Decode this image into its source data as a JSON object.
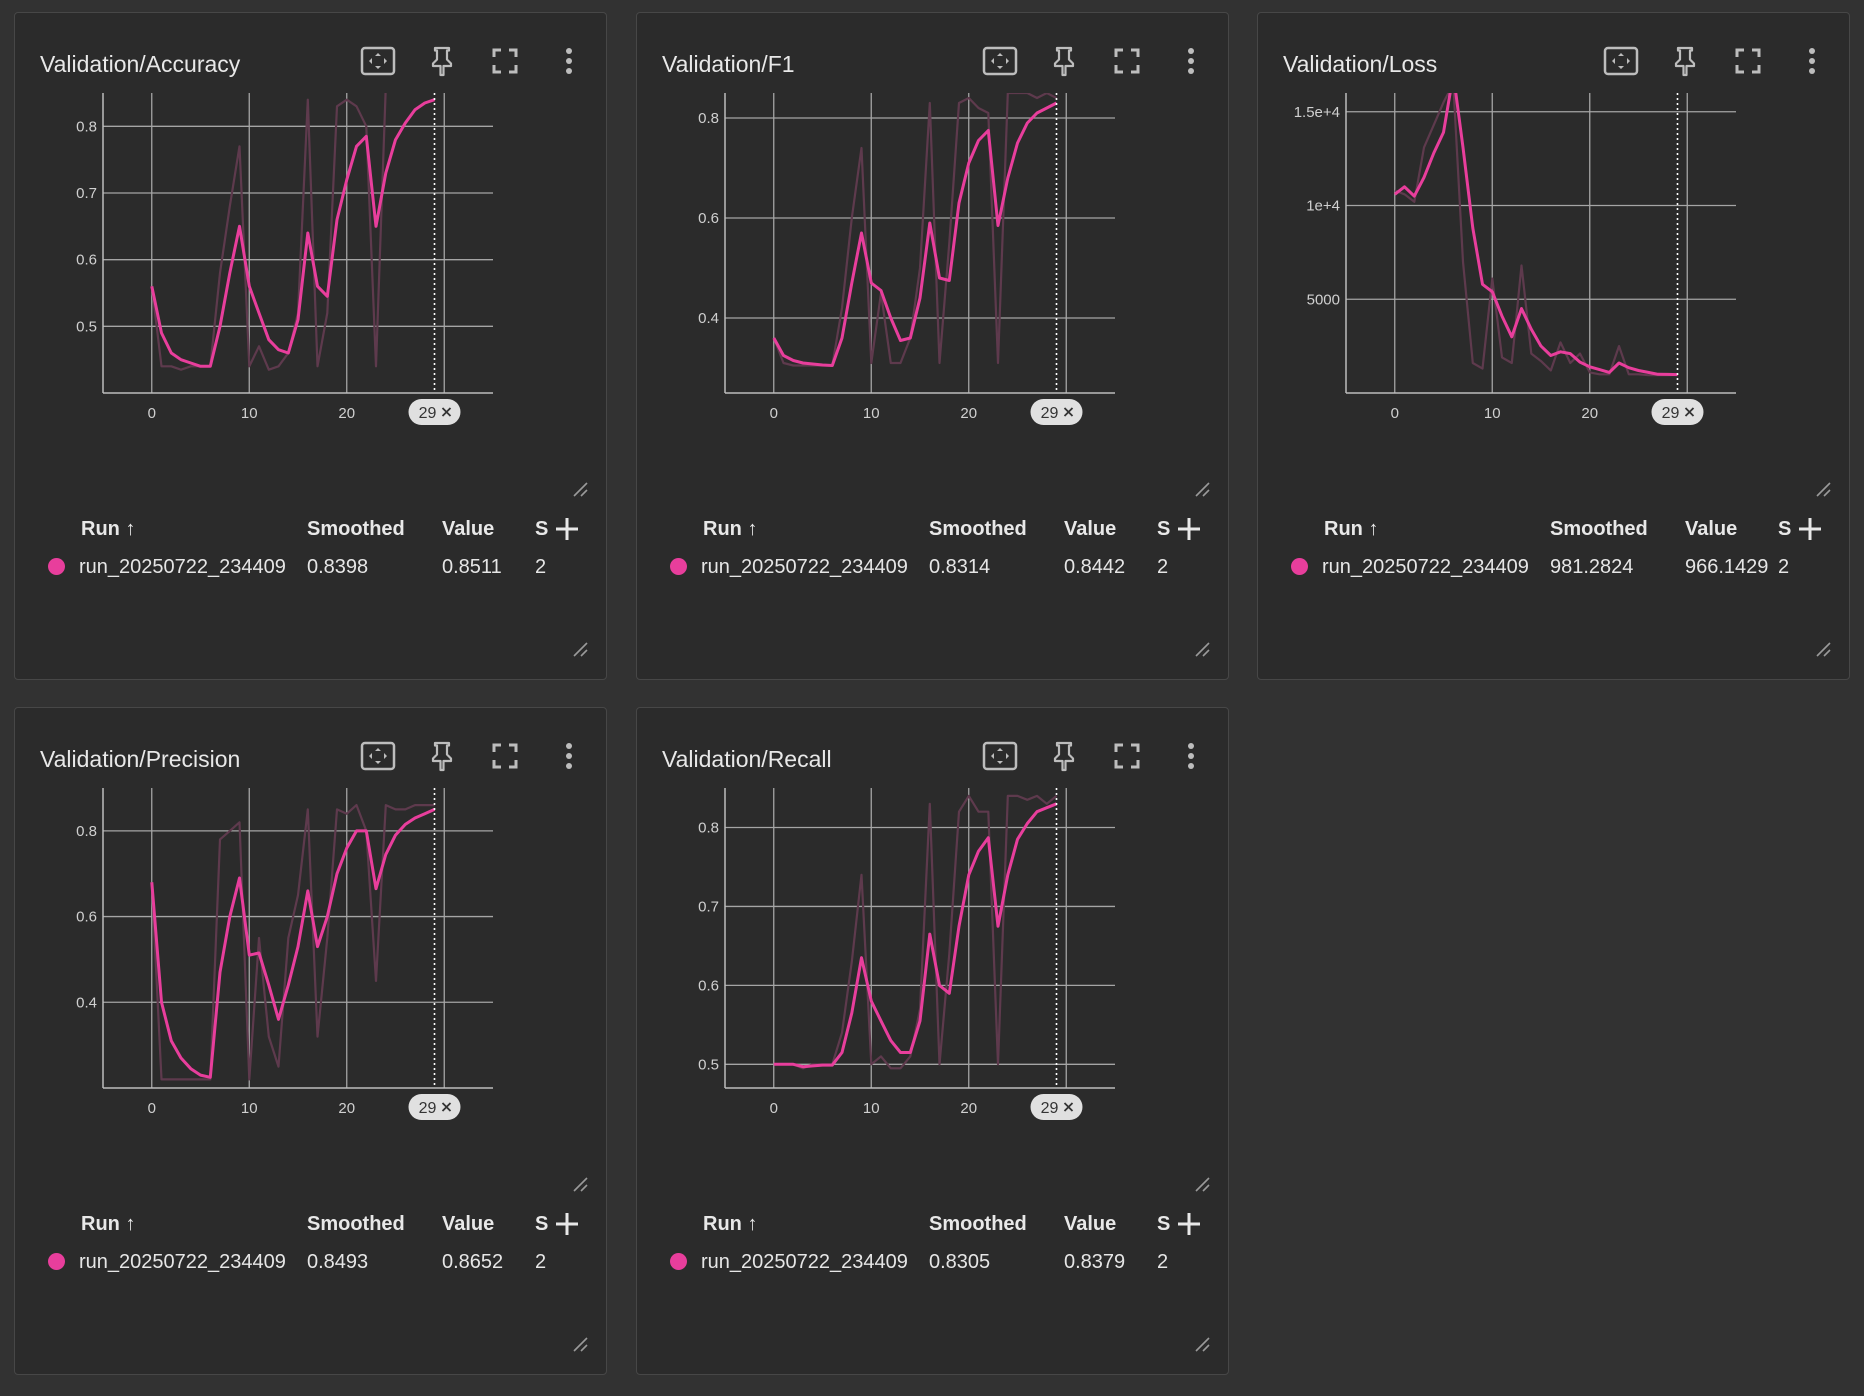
{
  "accent": "#e83e9c",
  "raw_color": "#5e3a4d",
  "table_headers": {
    "run": "Run",
    "smoothed": "Smoothed",
    "value": "Value",
    "step": "S"
  },
  "run_name": "run_20250722_234409",
  "step_marker": {
    "value": 29,
    "label": "29"
  },
  "toolbar_icons": [
    "fit-domain-icon",
    "pin-icon",
    "fullscreen-icon",
    "more-vert-icon"
  ],
  "cards": [
    {
      "title": "Validation/Accuracy",
      "smoothed": "0.8398",
      "value": "0.8511",
      "step": "2",
      "chart_data": {
        "type": "line",
        "x_ticks": [
          "0",
          "10",
          "20"
        ],
        "x_tick_values": [
          0,
          10,
          20
        ],
        "y_ticks": [
          "0.5",
          "0.6",
          "0.7",
          "0.8"
        ],
        "y_tick_values": [
          0.5,
          0.6,
          0.7,
          0.8
        ],
        "xlim": [
          -5,
          35
        ],
        "ylim": [
          0.4,
          0.85
        ],
        "series": [
          {
            "role": "raw",
            "values": [
              0.56,
              0.44,
              0.44,
              0.435,
              0.44,
              0.44,
              0.44,
              0.58,
              0.68,
              0.77,
              0.44,
              0.47,
              0.435,
              0.44,
              0.46,
              0.52,
              0.84,
              0.44,
              0.52,
              0.83,
              0.84,
              0.83,
              0.8,
              0.44,
              0.86,
              0.86,
              0.86,
              0.86,
              0.86,
              0.86
            ]
          },
          {
            "role": "smoothed",
            "values": [
              0.56,
              0.49,
              0.46,
              0.45,
              0.445,
              0.44,
              0.44,
              0.5,
              0.58,
              0.65,
              0.56,
              0.52,
              0.48,
              0.465,
              0.46,
              0.51,
              0.64,
              0.56,
              0.545,
              0.66,
              0.72,
              0.77,
              0.785,
              0.65,
              0.73,
              0.78,
              0.805,
              0.825,
              0.835,
              0.84
            ]
          }
        ]
      }
    },
    {
      "title": "Validation/F1",
      "smoothed": "0.8314",
      "value": "0.8442",
      "step": "2",
      "chart_data": {
        "type": "line",
        "x_ticks": [
          "0",
          "10",
          "20"
        ],
        "x_tick_values": [
          0,
          10,
          20
        ],
        "y_ticks": [
          "0.4",
          "0.6",
          "0.8"
        ],
        "y_tick_values": [
          0.4,
          0.6,
          0.8
        ],
        "xlim": [
          -5,
          35
        ],
        "ylim": [
          0.25,
          0.85
        ],
        "series": [
          {
            "role": "raw",
            "values": [
              0.36,
              0.31,
              0.305,
              0.305,
              0.305,
              0.305,
              0.305,
              0.42,
              0.6,
              0.74,
              0.31,
              0.45,
              0.31,
              0.31,
              0.36,
              0.5,
              0.83,
              0.31,
              0.55,
              0.83,
              0.84,
              0.82,
              0.81,
              0.31,
              0.85,
              0.85,
              0.85,
              0.84,
              0.85,
              0.84
            ]
          },
          {
            "role": "smoothed",
            "values": [
              0.36,
              0.325,
              0.315,
              0.31,
              0.308,
              0.306,
              0.305,
              0.36,
              0.47,
              0.57,
              0.47,
              0.455,
              0.4,
              0.355,
              0.36,
              0.44,
              0.59,
              0.48,
              0.475,
              0.63,
              0.71,
              0.755,
              0.775,
              0.585,
              0.68,
              0.75,
              0.79,
              0.81,
              0.82,
              0.83
            ]
          }
        ]
      }
    },
    {
      "title": "Validation/Loss",
      "smoothed": "981.2824",
      "value": "966.1429",
      "step": "2",
      "chart_data": {
        "type": "line",
        "x_ticks": [
          "0",
          "10",
          "20"
        ],
        "x_tick_values": [
          0,
          10,
          20
        ],
        "y_ticks": [
          "5000",
          "1e+4",
          "1.5e+4"
        ],
        "y_tick_values": [
          5000,
          10000,
          15000
        ],
        "xlim": [
          -5,
          35
        ],
        "ylim": [
          0,
          16000
        ],
        "series": [
          {
            "role": "raw",
            "values": [
              10800,
              10600,
              10200,
              13100,
              14300,
              15500,
              16500,
              7000,
              1600,
              1300,
              6100,
              1900,
              1600,
              6800,
              2100,
              1700,
              1200,
              2700,
              1600,
              2100,
              1100,
              1000,
              1000,
              2500,
              1000,
              1000,
              950,
              950,
              950,
              966
            ]
          },
          {
            "role": "smoothed",
            "values": [
              10600,
              11000,
              10500,
              11500,
              12800,
              13900,
              17000,
              13100,
              8800,
              5800,
              5400,
              4100,
              3000,
              4500,
              3400,
              2500,
              2000,
              2200,
              2100,
              1650,
              1400,
              1250,
              1100,
              1600,
              1350,
              1200,
              1100,
              1000,
              990,
              981
            ]
          }
        ]
      }
    },
    {
      "title": "Validation/Precision",
      "smoothed": "0.8493",
      "value": "0.8652",
      "step": "2",
      "chart_data": {
        "type": "line",
        "x_ticks": [
          "0",
          "10",
          "20"
        ],
        "x_tick_values": [
          0,
          10,
          20
        ],
        "y_ticks": [
          "0.4",
          "0.6",
          "0.8"
        ],
        "y_tick_values": [
          0.4,
          0.6,
          0.8
        ],
        "xlim": [
          -5,
          35
        ],
        "ylim": [
          0.2,
          0.9
        ],
        "series": [
          {
            "role": "raw",
            "values": [
              0.68,
              0.22,
              0.22,
              0.22,
              0.22,
              0.22,
              0.22,
              0.78,
              0.8,
              0.82,
              0.22,
              0.55,
              0.32,
              0.25,
              0.55,
              0.65,
              0.85,
              0.32,
              0.55,
              0.85,
              0.84,
              0.86,
              0.8,
              0.45,
              0.86,
              0.85,
              0.85,
              0.86,
              0.86,
              0.86
            ]
          },
          {
            "role": "smoothed",
            "values": [
              0.68,
              0.4,
              0.31,
              0.27,
              0.245,
              0.23,
              0.225,
              0.47,
              0.6,
              0.69,
              0.51,
              0.515,
              0.44,
              0.36,
              0.44,
              0.53,
              0.66,
              0.53,
              0.6,
              0.7,
              0.76,
              0.8,
              0.8,
              0.665,
              0.745,
              0.79,
              0.815,
              0.83,
              0.84,
              0.85
            ]
          }
        ]
      }
    },
    {
      "title": "Validation/Recall",
      "smoothed": "0.8305",
      "value": "0.8379",
      "step": "2",
      "chart_data": {
        "type": "line",
        "x_ticks": [
          "0",
          "10",
          "20"
        ],
        "x_tick_values": [
          0,
          10,
          20
        ],
        "y_ticks": [
          "0.5",
          "0.6",
          "0.7",
          "0.8"
        ],
        "y_tick_values": [
          0.5,
          0.6,
          0.7,
          0.8
        ],
        "xlim": [
          -5,
          35
        ],
        "ylim": [
          0.47,
          0.85
        ],
        "series": [
          {
            "role": "raw",
            "values": [
              0.5,
              0.5,
              0.5,
              0.495,
              0.5,
              0.5,
              0.5,
              0.54,
              0.63,
              0.74,
              0.5,
              0.51,
              0.495,
              0.495,
              0.51,
              0.57,
              0.83,
              0.5,
              0.64,
              0.82,
              0.84,
              0.82,
              0.82,
              0.5,
              0.84,
              0.84,
              0.835,
              0.84,
              0.83,
              0.84
            ]
          },
          {
            "role": "smoothed",
            "values": [
              0.5,
              0.5,
              0.5,
              0.497,
              0.498,
              0.499,
              0.499,
              0.515,
              0.565,
              0.635,
              0.58,
              0.555,
              0.53,
              0.515,
              0.515,
              0.555,
              0.665,
              0.6,
              0.59,
              0.675,
              0.74,
              0.77,
              0.787,
              0.675,
              0.74,
              0.785,
              0.805,
              0.82,
              0.825,
              0.83
            ]
          }
        ]
      }
    }
  ]
}
